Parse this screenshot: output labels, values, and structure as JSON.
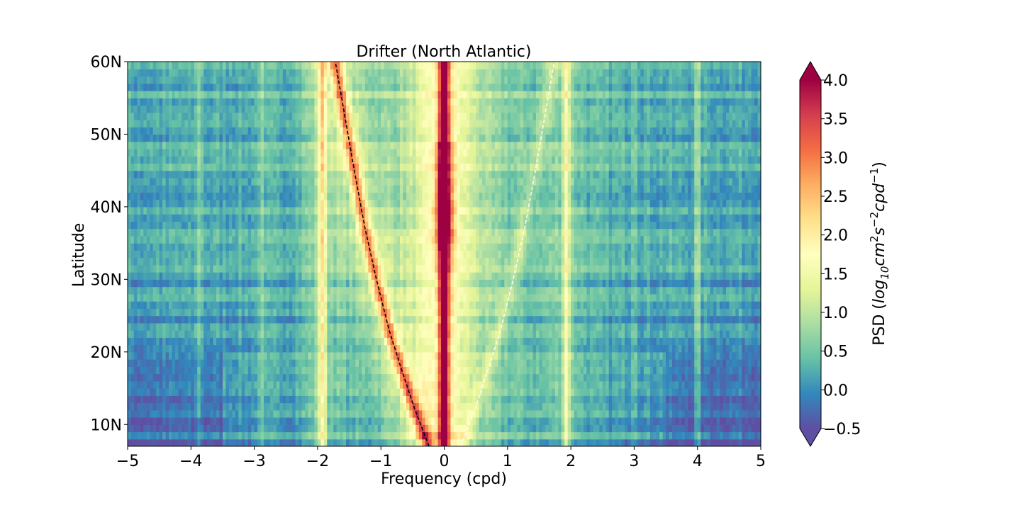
{
  "chart_data": {
    "type": "heatmap",
    "title": "Drifter (North Atlantic)",
    "xlabel": "Frequency (cpd)",
    "ylabel": "Latitude",
    "xlim": [
      -5,
      5
    ],
    "ylim": [
      7,
      60
    ],
    "x_ticks": [
      {
        "value": -5,
        "label": "−5"
      },
      {
        "value": -4,
        "label": "−4"
      },
      {
        "value": -3,
        "label": "−3"
      },
      {
        "value": -2,
        "label": "−2"
      },
      {
        "value": -1,
        "label": "−1"
      },
      {
        "value": 0,
        "label": "0"
      },
      {
        "value": 1,
        "label": "1"
      },
      {
        "value": 2,
        "label": "2"
      },
      {
        "value": 3,
        "label": "3"
      },
      {
        "value": 4,
        "label": "4"
      },
      {
        "value": 5,
        "label": "5"
      }
    ],
    "y_ticks": [
      {
        "value": 10,
        "label": "10N"
      },
      {
        "value": 20,
        "label": "20N"
      },
      {
        "value": 30,
        "label": "30N"
      },
      {
        "value": 40,
        "label": "40N"
      },
      {
        "value": 50,
        "label": "50N"
      },
      {
        "value": 60,
        "label": "60N"
      }
    ],
    "colorbar": {
      "label_main": "PSD (",
      "label_log": "log",
      "label_sub10": "10",
      "label_cm": "cm",
      "label_exp2": "2",
      "label_s": "s",
      "label_expm2": "−2",
      "label_cpd": "cpd",
      "label_expm1": "−1",
      "label_close": ")",
      "range": [
        -0.5,
        4.0
      ],
      "extend": "both",
      "colormap": "Spectral_r",
      "ticks": [
        {
          "value": 4.0,
          "label": "4.0"
        },
        {
          "value": 3.5,
          "label": "3.5"
        },
        {
          "value": 3.0,
          "label": "3.0"
        },
        {
          "value": 2.5,
          "label": "2.5"
        },
        {
          "value": 2.0,
          "label": "2.0"
        },
        {
          "value": 1.5,
          "label": "1.5"
        },
        {
          "value": 1.0,
          "label": "1.0"
        },
        {
          "value": 0.5,
          "label": "0.5"
        },
        {
          "value": 0.0,
          "label": "0.0"
        },
        {
          "value": -0.5,
          "label": "−0.5"
        }
      ]
    },
    "ridges": [
      {
        "frequency": 0,
        "peak_psd": 3.4,
        "note_latitudes_strongest": [
          36,
          50
        ]
      },
      {
        "frequency": -1.93,
        "peak_psd": 2.0
      },
      {
        "frequency": 1.93,
        "peak_psd": 1.7
      },
      {
        "frequency": -3.87,
        "peak_psd": 1.0
      },
      {
        "frequency": -2.9,
        "peak_psd": 1.0
      },
      {
        "frequency": 3.0,
        "peak_psd": 1.0
      },
      {
        "frequency": 4.0,
        "peak_psd": 1.1
      }
    ],
    "reference_lines": [
      {
        "style": "dashed",
        "color": "#000000",
        "points": [
          [
            -0.24,
            7
          ],
          [
            -0.46,
            12
          ],
          [
            -0.69,
            18
          ],
          [
            -0.87,
            23
          ],
          [
            -1.07,
            30
          ],
          [
            -1.25,
            37
          ],
          [
            -1.42,
            45
          ],
          [
            -1.58,
            53
          ],
          [
            -1.72,
            60
          ]
        ]
      },
      {
        "style": "dashed",
        "color": "#ffffff",
        "points": [
          [
            0.26,
            7
          ],
          [
            0.48,
            12
          ],
          [
            0.71,
            18
          ],
          [
            0.89,
            23
          ],
          [
            1.09,
            30
          ],
          [
            1.27,
            37
          ],
          [
            1.44,
            45
          ],
          [
            1.6,
            53
          ],
          [
            1.74,
            60
          ]
        ]
      }
    ]
  }
}
